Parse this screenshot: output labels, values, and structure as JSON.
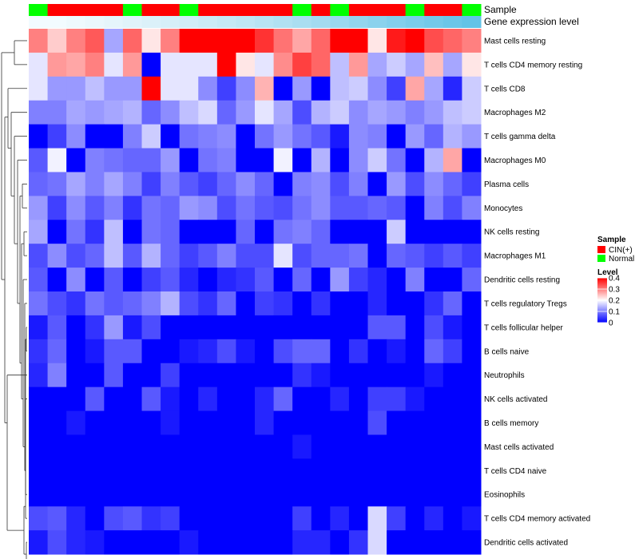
{
  "chart_data": {
    "type": "heatmap",
    "title": "",
    "annotation_labels": [
      "Sample",
      "Gene expression level"
    ],
    "legend": {
      "sample_title": "Sample",
      "sample_entries": [
        {
          "label": "CIN(+)",
          "color": "#ff0000"
        },
        {
          "label": "Normal",
          "color": "#00ff00"
        }
      ],
      "level_title": "Level",
      "level_ticks": [
        {
          "label": "0.4",
          "value": 0.4
        },
        {
          "label": "0.3",
          "value": 0.3
        },
        {
          "label": "0.2",
          "value": 0.2
        },
        {
          "label": "0.1",
          "value": 0.1
        },
        {
          "label": "0",
          "value": 0.0
        }
      ],
      "color_low": "#0000ff",
      "color_mid": "#ffffff",
      "color_high": "#ff0000",
      "range": [
        0,
        0.4
      ]
    },
    "sample_groups": [
      "Normal",
      "CIN",
      "CIN",
      "CIN",
      "CIN",
      "Normal",
      "CIN",
      "CIN",
      "Normal",
      "CIN",
      "CIN",
      "CIN",
      "CIN",
      "CIN",
      "Normal",
      "CIN",
      "Normal",
      "CIN",
      "CIN",
      "CIN",
      "Normal",
      "CIN",
      "CIN",
      "Normal"
    ],
    "expression_level_shades": [
      "#f2fbff",
      "#f2fbff",
      "#eef9fd",
      "#eaf7fc",
      "#e5f5fb",
      "#e0f3fa",
      "#dbf1f9",
      "#d6eff8",
      "#d1edf7",
      "#cbebf6",
      "#c5e9f5",
      "#bfe7f4",
      "#b8e4f3",
      "#b1e1f2",
      "#aadef1",
      "#a3dbf0",
      "#9bd8ef",
      "#93d5ee",
      "#8bd2ed",
      "#83cfec",
      "#7bccea",
      "#73c9e9",
      "#6bc6e8",
      "#63c3e7"
    ],
    "rows": [
      "Mast cells resting",
      "T cells CD4 memory resting",
      "T cells CD8",
      "Macrophages M2",
      "T cells gamma delta",
      "Macrophages M0",
      "Plasma cells",
      "Monocytes",
      "NK cells resting",
      "Macrophages M1",
      "Dendritic cells resting",
      "T cells regulatory  Tregs",
      "T cells follicular helper",
      "B cells naive",
      "Neutrophils",
      "NK cells activated",
      "B cells memory",
      "Mast cells activated",
      "T cells CD4 naive",
      "Eosinophils",
      "T cells CD4 memory activated",
      "Dendritic cells activated"
    ],
    "values": [
      [
        0.3,
        0.24,
        0.3,
        0.33,
        0.13,
        0.32,
        0.22,
        0.3,
        0.4,
        0.4,
        0.4,
        0.4,
        0.36,
        0.31,
        0.27,
        0.32,
        0.4,
        0.4,
        0.22,
        0.38,
        0.4,
        0.34,
        0.32,
        0.3
      ],
      [
        0.18,
        0.28,
        0.27,
        0.3,
        0.18,
        0.28,
        0.0,
        0.18,
        0.18,
        0.18,
        0.4,
        0.22,
        0.18,
        0.29,
        0.35,
        0.32,
        0.15,
        0.28,
        0.13,
        0.16,
        0.13,
        0.25,
        0.13,
        0.22
      ],
      [
        0.18,
        0.12,
        0.12,
        0.15,
        0.12,
        0.12,
        0.4,
        0.18,
        0.18,
        0.11,
        0.05,
        0.11,
        0.26,
        0.0,
        0.12,
        0.0,
        0.15,
        0.16,
        0.11,
        0.05,
        0.27,
        0.13,
        0.03,
        0.16
      ],
      [
        0.1,
        0.1,
        0.13,
        0.12,
        0.13,
        0.14,
        0.08,
        0.11,
        0.15,
        0.17,
        0.08,
        0.12,
        0.18,
        0.13,
        0.06,
        0.14,
        0.16,
        0.11,
        0.13,
        0.12,
        0.1,
        0.12,
        0.15,
        0.16
      ],
      [
        0.0,
        0.05,
        0.11,
        0.0,
        0.0,
        0.1,
        0.16,
        0.0,
        0.09,
        0.1,
        0.11,
        0.0,
        0.09,
        0.12,
        0.09,
        0.07,
        0.02,
        0.11,
        0.1,
        0.0,
        0.12,
        0.08,
        0.14,
        0.12
      ],
      [
        0.07,
        0.19,
        0.0,
        0.1,
        0.09,
        0.08,
        0.08,
        0.12,
        0.0,
        0.09,
        0.1,
        0.0,
        0.0,
        0.19,
        0.0,
        0.14,
        0.0,
        0.11,
        0.16,
        0.09,
        0.0,
        0.14,
        0.27,
        0.0
      ],
      [
        0.08,
        0.09,
        0.13,
        0.1,
        0.13,
        0.1,
        0.05,
        0.1,
        0.07,
        0.05,
        0.08,
        0.11,
        0.08,
        0.0,
        0.1,
        0.11,
        0.06,
        0.1,
        0.0,
        0.12,
        0.06,
        0.11,
        0.08,
        0.05
      ],
      [
        0.12,
        0.05,
        0.11,
        0.07,
        0.1,
        0.04,
        0.09,
        0.08,
        0.12,
        0.11,
        0.06,
        0.09,
        0.07,
        0.06,
        0.09,
        0.11,
        0.07,
        0.07,
        0.08,
        0.07,
        0.0,
        0.1,
        0.06,
        0.1
      ],
      [
        0.13,
        0.0,
        0.09,
        0.04,
        0.15,
        0.0,
        0.09,
        0.08,
        0.0,
        0.0,
        0.0,
        0.08,
        0.0,
        0.09,
        0.1,
        0.08,
        0.0,
        0.0,
        0.0,
        0.16,
        0.0,
        0.0,
        0.0,
        0.0
      ],
      [
        0.06,
        0.11,
        0.06,
        0.08,
        0.15,
        0.07,
        0.14,
        0.08,
        0.05,
        0.07,
        0.1,
        0.06,
        0.06,
        0.18,
        0.06,
        0.08,
        0.08,
        0.09,
        0.0,
        0.08,
        0.07,
        0.05,
        0.07,
        0.05
      ],
      [
        0.07,
        0.0,
        0.11,
        0.0,
        0.07,
        0.0,
        0.05,
        0.07,
        0.03,
        0.0,
        0.03,
        0.04,
        0.07,
        0.0,
        0.08,
        0.0,
        0.12,
        0.05,
        0.03,
        0.0,
        0.1,
        0.0,
        0.0,
        0.08
      ],
      [
        0.09,
        0.06,
        0.04,
        0.09,
        0.07,
        0.08,
        0.1,
        0.14,
        0.06,
        0.04,
        0.08,
        0.0,
        0.05,
        0.04,
        0.0,
        0.04,
        0.0,
        0.0,
        0.03,
        0.0,
        0.0,
        0.04,
        0.08,
        0.0
      ],
      [
        0.02,
        0.07,
        0.0,
        0.04,
        0.12,
        0.02,
        0.06,
        0.0,
        0.0,
        0.0,
        0.0,
        0.0,
        0.0,
        0.0,
        0.0,
        0.0,
        0.0,
        0.0,
        0.07,
        0.07,
        0.0,
        0.06,
        0.02,
        0.0
      ],
      [
        0.04,
        0.08,
        0.0,
        0.02,
        0.07,
        0.07,
        0.0,
        0.0,
        0.02,
        0.03,
        0.06,
        0.02,
        0.0,
        0.06,
        0.08,
        0.08,
        0.0,
        0.04,
        0.0,
        0.02,
        0.0,
        0.08,
        0.05,
        0.0
      ],
      [
        0.03,
        0.1,
        0.0,
        0.0,
        0.07,
        0.0,
        0.0,
        0.05,
        0.0,
        0.0,
        0.0,
        0.0,
        0.0,
        0.0,
        0.04,
        0.02,
        0.0,
        0.0,
        0.0,
        0.0,
        0.0,
        0.02,
        0.0,
        0.0
      ],
      [
        0.0,
        0.0,
        0.0,
        0.07,
        0.0,
        0.0,
        0.07,
        0.02,
        0.0,
        0.03,
        0.0,
        0.0,
        0.03,
        0.08,
        0.0,
        0.0,
        0.03,
        0.0,
        0.05,
        0.05,
        0.02,
        0.0,
        0.0,
        0.0
      ],
      [
        0.0,
        0.0,
        0.02,
        0.0,
        0.0,
        0.0,
        0.0,
        0.02,
        0.0,
        0.0,
        0.0,
        0.0,
        0.03,
        0.0,
        0.0,
        0.0,
        0.0,
        0.0,
        0.06,
        0.0,
        0.0,
        0.0,
        0.0,
        0.0
      ],
      [
        0.0,
        0.0,
        0.0,
        0.0,
        0.0,
        0.0,
        0.0,
        0.0,
        0.0,
        0.0,
        0.0,
        0.0,
        0.0,
        0.0,
        0.02,
        0.0,
        0.0,
        0.0,
        0.0,
        0.0,
        0.0,
        0.0,
        0.0,
        0.0
      ],
      [
        0.0,
        0.0,
        0.0,
        0.0,
        0.0,
        0.0,
        0.0,
        0.0,
        0.0,
        0.0,
        0.0,
        0.0,
        0.0,
        0.0,
        0.0,
        0.0,
        0.0,
        0.0,
        0.0,
        0.0,
        0.0,
        0.0,
        0.0,
        0.0
      ],
      [
        0.0,
        0.0,
        0.0,
        0.0,
        0.0,
        0.0,
        0.0,
        0.0,
        0.0,
        0.0,
        0.0,
        0.0,
        0.0,
        0.0,
        0.0,
        0.0,
        0.0,
        0.0,
        0.0,
        0.0,
        0.0,
        0.0,
        0.0,
        0.0
      ],
      [
        0.06,
        0.07,
        0.03,
        0.0,
        0.06,
        0.07,
        0.04,
        0.05,
        0.0,
        0.0,
        0.0,
        0.0,
        0.0,
        0.0,
        0.05,
        0.0,
        0.03,
        0.0,
        0.17,
        0.05,
        0.0,
        0.03,
        0.0,
        0.02
      ],
      [
        0.02,
        0.06,
        0.03,
        0.02,
        0.0,
        0.0,
        0.0,
        0.0,
        0.02,
        0.0,
        0.0,
        0.0,
        0.0,
        0.0,
        0.03,
        0.03,
        0.0,
        0.04,
        0.17,
        0.0,
        0.0,
        0.0,
        0.0,
        0.0
      ]
    ],
    "dendrogram": "row clustering tree (left)"
  }
}
